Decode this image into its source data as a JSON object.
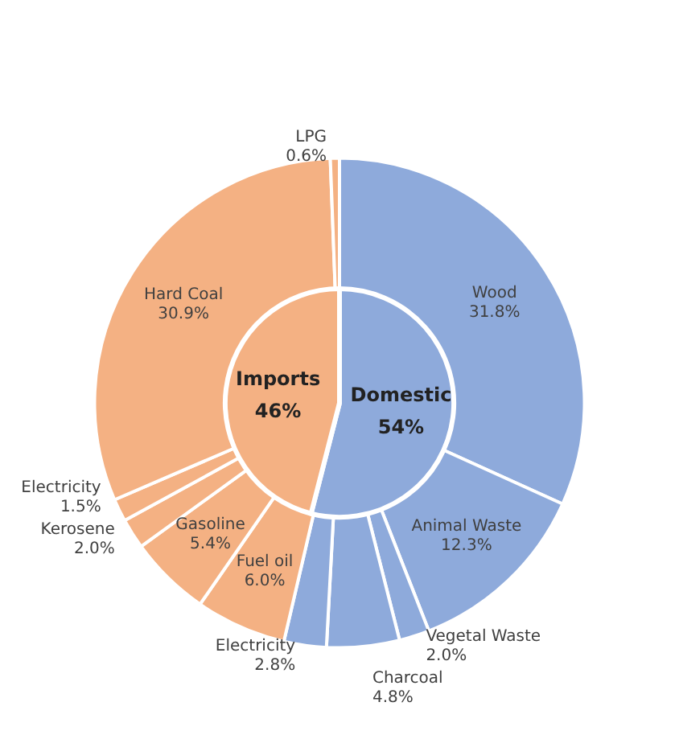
{
  "chart_data": [
    {
      "type": "pie",
      "data_labels": true,
      "categories": [
        "Domestic",
        "Imports"
      ],
      "values": [
        54,
        46
      ],
      "colors": [
        "#8eaadb",
        "#f4b183"
      ],
      "value_labels": [
        "54%",
        "46%"
      ]
    },
    {
      "type": "donut",
      "data_labels": true,
      "categories": [
        "Wood",
        "Animal Waste",
        "Vegetal Waste",
        "Charcoal",
        "Electricity",
        "Fuel oil",
        "Gasoline",
        "Kerosene",
        "Electricity",
        "Hard Coal",
        "LPG"
      ],
      "values": [
        31.8,
        12.3,
        2.0,
        4.8,
        2.8,
        6.0,
        5.4,
        2.0,
        1.5,
        30.9,
        0.6
      ],
      "colors": [
        "#8eaadb",
        "#8eaadb",
        "#8eaadb",
        "#8eaadb",
        "#8eaadb",
        "#f4b183",
        "#f4b183",
        "#f4b183",
        "#f4b183",
        "#f4b183",
        "#f4b183"
      ],
      "value_labels": [
        "31.8%",
        "12.3%",
        "2.0%",
        "4.8%",
        "2.8%",
        "6.0%",
        "5.4%",
        "2.0%",
        "1.5%",
        "30.9%",
        "0.6%"
      ]
    }
  ]
}
